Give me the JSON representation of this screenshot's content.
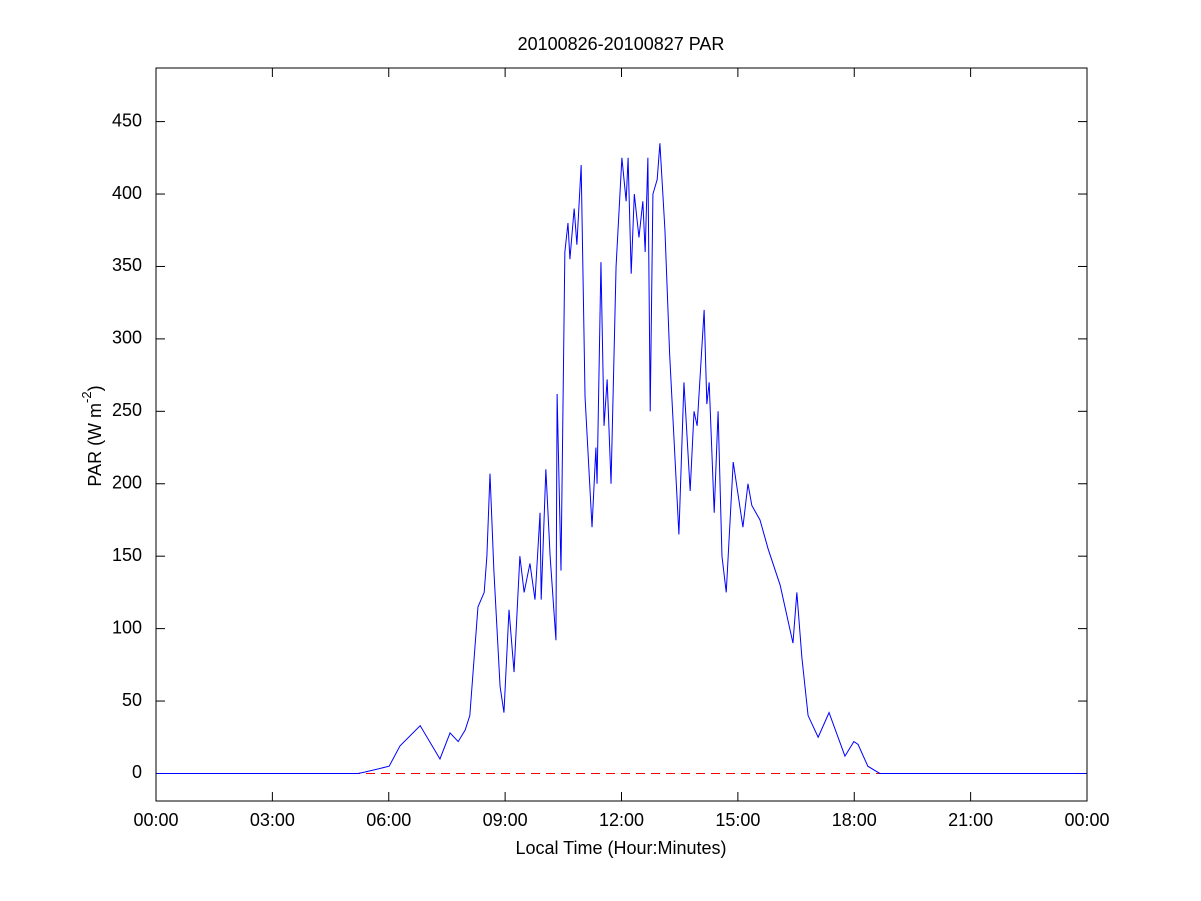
{
  "chart_data": {
    "type": "line",
    "title": "20100826-20100827 PAR",
    "xlabel": "Local Time (Hour:Minutes)",
    "ylabel": [
      "PAR (W m",
      "-2",
      ")"
    ],
    "color": "#0000ff",
    "x": [
      0,
      5.21,
      5.39,
      6.01,
      6.29,
      6.81,
      7.32,
      7.58,
      7.79,
      7.97,
      8.09,
      8.3,
      8.46,
      8.53,
      8.61,
      8.71,
      8.87,
      8.97,
      9.1,
      9.23,
      9.38,
      9.49,
      9.64,
      9.77,
      9.9,
      9.93,
      10.05,
      10.16,
      10.31,
      10.34,
      10.44,
      10.54,
      10.62,
      10.67,
      10.78,
      10.85,
      10.96,
      11.06,
      11.24,
      11.34,
      11.37,
      11.47,
      11.55,
      11.63,
      11.73,
      11.86,
      12.01,
      12.12,
      12.17,
      12.25,
      12.33,
      12.45,
      12.55,
      12.61,
      12.68,
      12.74,
      12.81,
      12.92,
      12.99,
      13.12,
      13.24,
      13.48,
      13.61,
      13.77,
      13.87,
      13.95,
      14.13,
      14.2,
      14.26,
      14.39,
      14.49,
      14.59,
      14.7,
      14.88,
      15.13,
      15.26,
      15.36,
      15.57,
      15.78,
      16.09,
      16.42,
      16.52,
      16.65,
      16.81,
      17.07,
      17.35,
      17.76,
      17.99,
      18.1,
      18.35,
      18.66,
      24
    ],
    "values": [
      0,
      0,
      1,
      5,
      19,
      33,
      10,
      28,
      22,
      30,
      40,
      115,
      125,
      150,
      207,
      140,
      60,
      42,
      113,
      70,
      150,
      125,
      145,
      120,
      180,
      120,
      210,
      150,
      92,
      262,
      140,
      360,
      380,
      355,
      390,
      365,
      420,
      260,
      170,
      225,
      200,
      353,
      240,
      272,
      200,
      350,
      425,
      395,
      425,
      345,
      400,
      370,
      395,
      360,
      425,
      250,
      400,
      410,
      435,
      375,
      290,
      165,
      270,
      195,
      250,
      240,
      320,
      255,
      270,
      180,
      250,
      150,
      125,
      215,
      170,
      200,
      185,
      175,
      155,
      130,
      90,
      125,
      80,
      40,
      25,
      42,
      12,
      22,
      20,
      5,
      0,
      0
    ],
    "xlim": [
      0,
      24
    ],
    "xticks": [
      {
        "value": 0,
        "label": "00:00"
      },
      {
        "value": 3,
        "label": "03:00"
      },
      {
        "value": 6,
        "label": "06:00"
      },
      {
        "value": 9,
        "label": "09:00"
      },
      {
        "value": 12,
        "label": "12:00"
      },
      {
        "value": 15,
        "label": "15:00"
      },
      {
        "value": 18,
        "label": "18:00"
      },
      {
        "value": 21,
        "label": "21:00"
      },
      {
        "value": 24,
        "label": "00:00"
      }
    ],
    "ylim": [
      -19,
      487
    ],
    "yticks": [
      0,
      50,
      100,
      150,
      200,
      250,
      300,
      350,
      400,
      450
    ],
    "hlines": [
      {
        "value": 0,
        "color": "#ff0000",
        "style": "dashed"
      }
    ],
    "grid": false
  }
}
